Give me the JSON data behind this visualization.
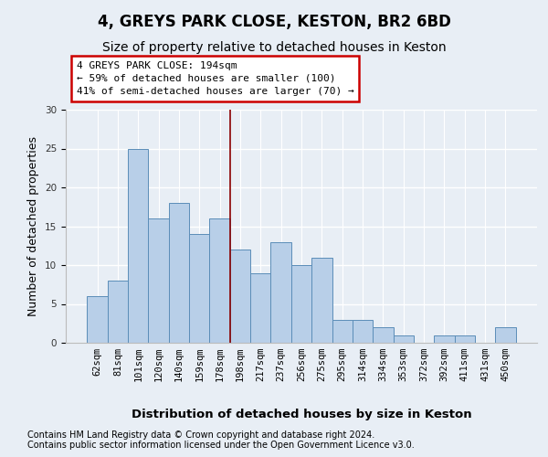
{
  "title": "4, GREYS PARK CLOSE, KESTON, BR2 6BD",
  "subtitle": "Size of property relative to detached houses in Keston",
  "xlabel": "Distribution of detached houses by size in Keston",
  "ylabel": "Number of detached properties",
  "categories": [
    "62sqm",
    "81sqm",
    "101sqm",
    "120sqm",
    "140sqm",
    "159sqm",
    "178sqm",
    "198sqm",
    "217sqm",
    "237sqm",
    "256sqm",
    "275sqm",
    "295sqm",
    "314sqm",
    "334sqm",
    "353sqm",
    "372sqm",
    "392sqm",
    "411sqm",
    "431sqm",
    "450sqm"
  ],
  "values": [
    6,
    8,
    25,
    16,
    18,
    14,
    16,
    12,
    9,
    13,
    10,
    11,
    3,
    3,
    2,
    1,
    0,
    1,
    1,
    0,
    2
  ],
  "bar_color": "#b8cfe8",
  "bar_edge_color": "#5b8db8",
  "highlight_index": 7,
  "highlight_line_color": "#8b0000",
  "ylim": [
    0,
    30
  ],
  "yticks": [
    0,
    5,
    10,
    15,
    20,
    25,
    30
  ],
  "annotation_text": "4 GREYS PARK CLOSE: 194sqm\n← 59% of detached houses are smaller (100)\n41% of semi-detached houses are larger (70) →",
  "annotation_box_color": "#ffffff",
  "annotation_border_color": "#cc0000",
  "footnote1": "Contains HM Land Registry data © Crown copyright and database right 2024.",
  "footnote2": "Contains public sector information licensed under the Open Government Licence v3.0.",
  "background_color": "#e8eef5",
  "grid_color": "#d0d8e4",
  "title_fontsize": 12,
  "subtitle_fontsize": 10,
  "axis_label_fontsize": 9,
  "tick_fontsize": 7.5,
  "annotation_fontsize": 8,
  "footnote_fontsize": 7
}
